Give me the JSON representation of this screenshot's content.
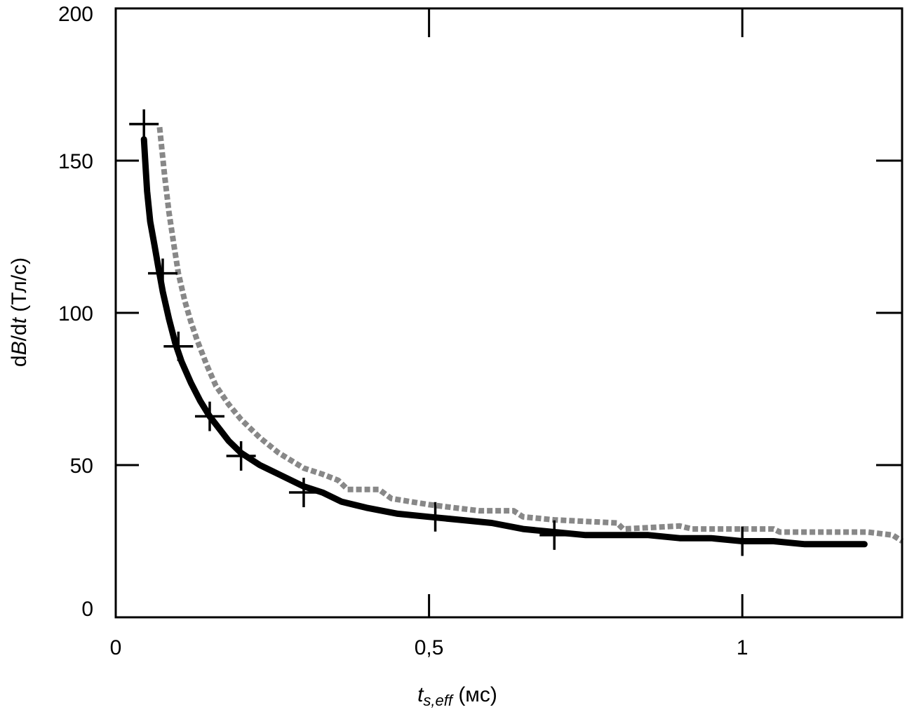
{
  "chart_data": {
    "type": "line",
    "xlabel": {
      "var": "t",
      "sub": "s,eff",
      "unit": " (мс)"
    },
    "ylabel": {
      "pre": "d",
      "b": "B",
      "mid": "/d",
      "t": "t",
      "unit": " (Тл/с)"
    },
    "xlim": [
      0,
      1.255
    ],
    "ylim": [
      0,
      200
    ],
    "x_ticks": [
      {
        "value": 0,
        "label": "0"
      },
      {
        "value": 0.5,
        "label": "0,5"
      },
      {
        "value": 1,
        "label": "1"
      }
    ],
    "y_ticks": [
      {
        "value": 0,
        "label": "0"
      },
      {
        "value": 50,
        "label": "50"
      },
      {
        "value": 100,
        "label": "100"
      },
      {
        "value": 150,
        "label": "150"
      },
      {
        "value": 200,
        "label": "200"
      }
    ],
    "grid": false,
    "series": [
      {
        "style": "solid",
        "color": "#000000",
        "points": [
          [
            0.045,
            157
          ],
          [
            0.047,
            150
          ],
          [
            0.05,
            140
          ],
          [
            0.055,
            130
          ],
          [
            0.062,
            122
          ],
          [
            0.068,
            115
          ],
          [
            0.075,
            107
          ],
          [
            0.085,
            98
          ],
          [
            0.095,
            90
          ],
          [
            0.105,
            84
          ],
          [
            0.12,
            77
          ],
          [
            0.135,
            71
          ],
          [
            0.15,
            66
          ],
          [
            0.165,
            62
          ],
          [
            0.18,
            58
          ],
          [
            0.2,
            54
          ],
          [
            0.23,
            50
          ],
          [
            0.26,
            47
          ],
          [
            0.3,
            43
          ],
          [
            0.33,
            41
          ],
          [
            0.36,
            38
          ],
          [
            0.4,
            36
          ],
          [
            0.45,
            34
          ],
          [
            0.5,
            33
          ],
          [
            0.55,
            32
          ],
          [
            0.6,
            31
          ],
          [
            0.65,
            29
          ],
          [
            0.7,
            28
          ],
          [
            0.75,
            27
          ],
          [
            0.8,
            27
          ],
          [
            0.85,
            27
          ],
          [
            0.9,
            26
          ],
          [
            0.95,
            26
          ],
          [
            1.0,
            25
          ],
          [
            1.05,
            25
          ],
          [
            1.1,
            24
          ],
          [
            1.15,
            24
          ],
          [
            1.195,
            24
          ]
        ]
      },
      {
        "style": "dotted",
        "color": "#888888",
        "points": [
          [
            0.07,
            161
          ],
          [
            0.073,
            155
          ],
          [
            0.078,
            145
          ],
          [
            0.085,
            133
          ],
          [
            0.093,
            122
          ],
          [
            0.1,
            113
          ],
          [
            0.11,
            104
          ],
          [
            0.12,
            97
          ],
          [
            0.13,
            91
          ],
          [
            0.145,
            83
          ],
          [
            0.16,
            76
          ],
          [
            0.18,
            70
          ],
          [
            0.2,
            65
          ],
          [
            0.23,
            59
          ],
          [
            0.26,
            54
          ],
          [
            0.3,
            49
          ],
          [
            0.33,
            47
          ],
          [
            0.355,
            45
          ],
          [
            0.37,
            42
          ],
          [
            0.42,
            42
          ],
          [
            0.44,
            39
          ],
          [
            0.5,
            37
          ],
          [
            0.54,
            36
          ],
          [
            0.58,
            35
          ],
          [
            0.635,
            35
          ],
          [
            0.65,
            33
          ],
          [
            0.7,
            32
          ],
          [
            0.8,
            31
          ],
          [
            0.81,
            29
          ],
          [
            0.9,
            30
          ],
          [
            0.92,
            29
          ],
          [
            1.05,
            29
          ],
          [
            1.06,
            28
          ],
          [
            1.1,
            28
          ],
          [
            1.2,
            28
          ],
          [
            1.24,
            27
          ],
          [
            1.255,
            25
          ]
        ]
      }
    ],
    "markers": [
      {
        "symbol": "+",
        "points": [
          [
            0.045,
            162
          ],
          [
            0.075,
            113
          ],
          [
            0.1,
            89
          ],
          [
            0.15,
            66
          ],
          [
            0.2,
            53
          ],
          [
            0.3,
            41
          ],
          [
            0.51,
            33
          ],
          [
            0.7,
            27
          ],
          [
            1.0,
            25
          ]
        ]
      }
    ]
  }
}
